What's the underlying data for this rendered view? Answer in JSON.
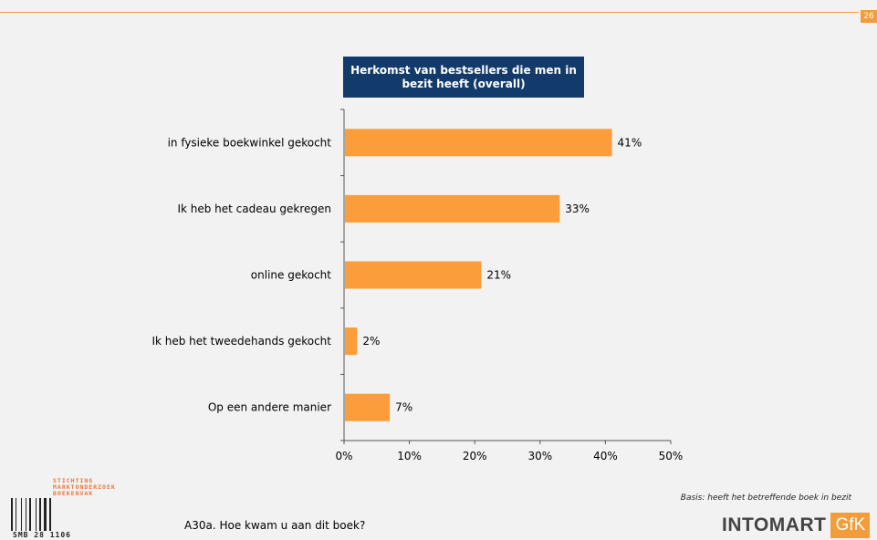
{
  "page_number": "26",
  "chart_data": {
    "type": "bar",
    "orientation": "horizontal",
    "title": "Herkomst van bestsellers die men in bezit heeft (overall)",
    "categories": [
      "in fysieke boekwinkel gekocht",
      "Ik heb het cadeau gekregen",
      "online gekocht",
      "Ik heb het tweedehands gekocht",
      "Op een andere manier"
    ],
    "values": [
      41,
      33,
      21,
      2,
      7
    ],
    "value_labels": [
      "41%",
      "33%",
      "21%",
      "2%",
      "7%"
    ],
    "xlim": [
      0,
      50
    ],
    "xticks": [
      0,
      10,
      20,
      30,
      40,
      50
    ],
    "xtick_labels": [
      "0%",
      "10%",
      "20%",
      "30%",
      "40%",
      "50%"
    ],
    "bar_color": "#fa9d3a",
    "grid": false
  },
  "footnote": "Basis: heeft het betreffende boek in bezit",
  "question": "A30a. Hoe kwam u aan dit boek?",
  "logos": {
    "smb_text_lines": [
      "STICHTING",
      "MARKTONDERZOEK",
      "BOEKENVAK"
    ],
    "smb_code": "SMB 28  1106",
    "intomart_word": "INTOMART",
    "gfk_word": "GfK"
  },
  "colors": {
    "accent": "#f39c3a",
    "title_bg": "#123a6b"
  }
}
